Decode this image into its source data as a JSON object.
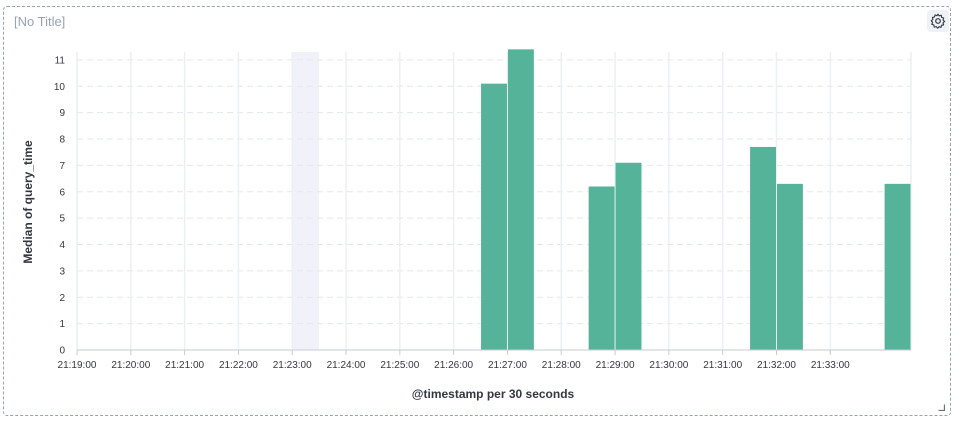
{
  "panel": {
    "title": "[No Title]",
    "settings_icon": "gear-icon",
    "resize_icon": "resize-handle-icon"
  },
  "chart_data": {
    "type": "bar",
    "x_interval_seconds": 30,
    "x_range": [
      "21:19:00",
      "21:34:30"
    ],
    "xticks": [
      "21:19:00",
      "21:20:00",
      "21:21:00",
      "21:22:00",
      "21:23:00",
      "21:24:00",
      "21:25:00",
      "21:26:00",
      "21:27:00",
      "21:28:00",
      "21:29:00",
      "21:30:00",
      "21:31:00",
      "21:32:00",
      "21:33:00"
    ],
    "yticks": [
      0,
      1,
      2,
      3,
      4,
      5,
      6,
      7,
      8,
      9,
      10,
      11
    ],
    "ylim": [
      0,
      11.3
    ],
    "xlabel": "@timestamp per 30 seconds",
    "ylabel": "Median of query_time",
    "grid": true,
    "bar_color": "#54b399",
    "highlight_color": "#f1f2f9",
    "highlight_range": [
      "21:23:00",
      "21:23:30"
    ],
    "points": [
      {
        "x": "21:26:30",
        "y": 10.1
      },
      {
        "x": "21:27:00",
        "y": 11.4
      },
      {
        "x": "21:28:30",
        "y": 6.2
      },
      {
        "x": "21:29:00",
        "y": 7.1
      },
      {
        "x": "21:31:30",
        "y": 7.7
      },
      {
        "x": "21:32:00",
        "y": 6.3
      },
      {
        "x": "21:34:00",
        "y": 6.3
      }
    ]
  }
}
